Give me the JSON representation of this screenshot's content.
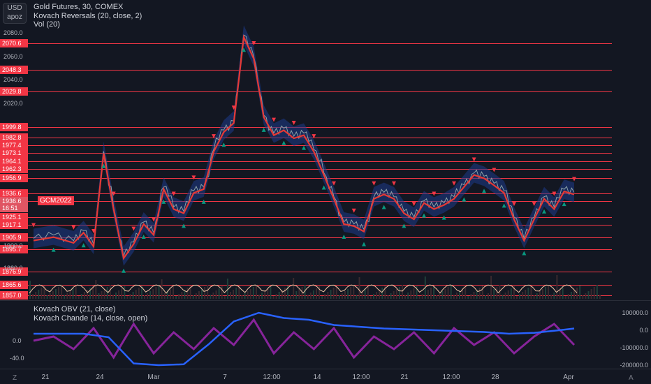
{
  "legend": {
    "title": "Gold Futures, 30, COMEX",
    "indicator1": "Kovach Reversals (20, close, 2)",
    "indicator2": "Vol (20)"
  },
  "legend_sub": {
    "indicator1": "Kovach OBV (21, close)",
    "indicator2": "Kovach Chande (14, close, open)"
  },
  "currency": {
    "line1": "USD",
    "line2": "apoz"
  },
  "symbol_tag": "GCM2022",
  "corner_left": "Z",
  "corner_right": "A",
  "colors": {
    "background": "#131722",
    "level": "#f23645",
    "ma": "#e53935",
    "band": "#1e3a8a",
    "obv": "#2962ff",
    "chande": "#9c27b0",
    "up": "#089981"
  },
  "chart_data": [
    {
      "type": "line",
      "title": "Gold Futures, 30, COMEX",
      "y_ticks": [
        "2080.0",
        "2060.0",
        "2040.0",
        "2020.0",
        "1900.0",
        "1880.0"
      ],
      "level_labels": [
        "2070.6",
        "2048.3",
        "2029.8",
        "1999.8",
        "1982.8",
        "1977.4",
        "1973.1",
        "1964.1",
        "1962.3",
        "1956.9",
        "1936.6",
        "1936.6",
        "16:51",
        "1925.1",
        "1917.1",
        "1905.9",
        "1895.7",
        "1876.9",
        "1865.6",
        "1857.0"
      ],
      "levels": [
        2070.6,
        2048.3,
        2029.8,
        1999.8,
        1982.8,
        1977.4,
        1973.1,
        1964.1,
        1962.3,
        1956.9,
        1936.6,
        1925.1,
        1917.1,
        1905.9,
        1895.7,
        1876.9,
        1865.6,
        1857.0
      ],
      "x_ticks": [
        "21",
        "24",
        "Mar",
        "7",
        "12:00",
        "14",
        "12:00",
        "21",
        "12:00",
        "28",
        "Apr"
      ],
      "price_path": [
        [
          0,
          1905
        ],
        [
          4,
          1908
        ],
        [
          8,
          1903
        ],
        [
          10,
          1912
        ],
        [
          12,
          1900
        ],
        [
          14,
          1974
        ],
        [
          16,
          1930
        ],
        [
          18,
          1890
        ],
        [
          20,
          1902
        ],
        [
          22,
          1920
        ],
        [
          24,
          1910
        ],
        [
          26,
          1945
        ],
        [
          28,
          1930
        ],
        [
          30,
          1928
        ],
        [
          32,
          1940
        ],
        [
          34,
          1945
        ],
        [
          36,
          1975
        ],
        [
          38,
          1995
        ],
        [
          40,
          2005
        ],
        [
          42,
          2078
        ],
        [
          44,
          2060
        ],
        [
          46,
          2010
        ],
        [
          48,
          1990
        ],
        [
          50,
          1998
        ],
        [
          52,
          1985
        ],
        [
          54,
          1990
        ],
        [
          56,
          1975
        ],
        [
          58,
          1960
        ],
        [
          60,
          1935
        ],
        [
          62,
          1920
        ],
        [
          64,
          1918
        ],
        [
          66,
          1913
        ],
        [
          68,
          1935
        ],
        [
          70,
          1938
        ],
        [
          72,
          1935
        ],
        [
          74,
          1928
        ],
        [
          76,
          1925
        ],
        [
          78,
          1933
        ],
        [
          80,
          1930
        ],
        [
          82,
          1932
        ],
        [
          84,
          1935
        ],
        [
          86,
          1948
        ],
        [
          88,
          1960
        ],
        [
          90,
          1958
        ],
        [
          92,
          1950
        ],
        [
          94,
          1940
        ],
        [
          96,
          1925
        ],
        [
          98,
          1905
        ],
        [
          100,
          1925
        ],
        [
          102,
          1935
        ],
        [
          104,
          1930
        ],
        [
          106,
          1942
        ],
        [
          108,
          1938
        ]
      ],
      "ylim": [
        1850,
        2090
      ]
    },
    {
      "type": "line",
      "series": [
        {
          "name": "Kovach OBV (21, close)"
        },
        {
          "name": "Kovach Chande (14, close, open)"
        }
      ],
      "y_ticks_left": [
        "0.0",
        "-40.0"
      ],
      "y_ticks_right": [
        "100000.0",
        "0.0",
        "-100000.0",
        "-200000.0"
      ],
      "obv": [
        [
          0,
          -20000
        ],
        [
          10,
          -20000
        ],
        [
          15,
          -40000
        ],
        [
          20,
          -190000
        ],
        [
          25,
          -200000
        ],
        [
          30,
          -195000
        ],
        [
          35,
          -80000
        ],
        [
          40,
          50000
        ],
        [
          45,
          100000
        ],
        [
          50,
          70000
        ],
        [
          55,
          60000
        ],
        [
          60,
          30000
        ],
        [
          70,
          10000
        ],
        [
          80,
          0
        ],
        [
          90,
          -10000
        ],
        [
          95,
          -20000
        ],
        [
          100,
          -15000
        ],
        [
          105,
          0
        ],
        [
          108,
          10000
        ]
      ],
      "chande": [
        [
          0,
          0
        ],
        [
          4,
          10
        ],
        [
          8,
          -20
        ],
        [
          12,
          30
        ],
        [
          16,
          -40
        ],
        [
          20,
          40
        ],
        [
          24,
          -30
        ],
        [
          28,
          20
        ],
        [
          32,
          -20
        ],
        [
          36,
          30
        ],
        [
          40,
          -10
        ],
        [
          44,
          50
        ],
        [
          48,
          -30
        ],
        [
          52,
          20
        ],
        [
          56,
          -20
        ],
        [
          60,
          30
        ],
        [
          64,
          -40
        ],
        [
          68,
          10
        ],
        [
          72,
          -20
        ],
        [
          76,
          20
        ],
        [
          80,
          -30
        ],
        [
          84,
          30
        ],
        [
          88,
          -10
        ],
        [
          92,
          20
        ],
        [
          96,
          -30
        ],
        [
          100,
          10
        ],
        [
          104,
          40
        ],
        [
          108,
          -10
        ]
      ]
    }
  ]
}
